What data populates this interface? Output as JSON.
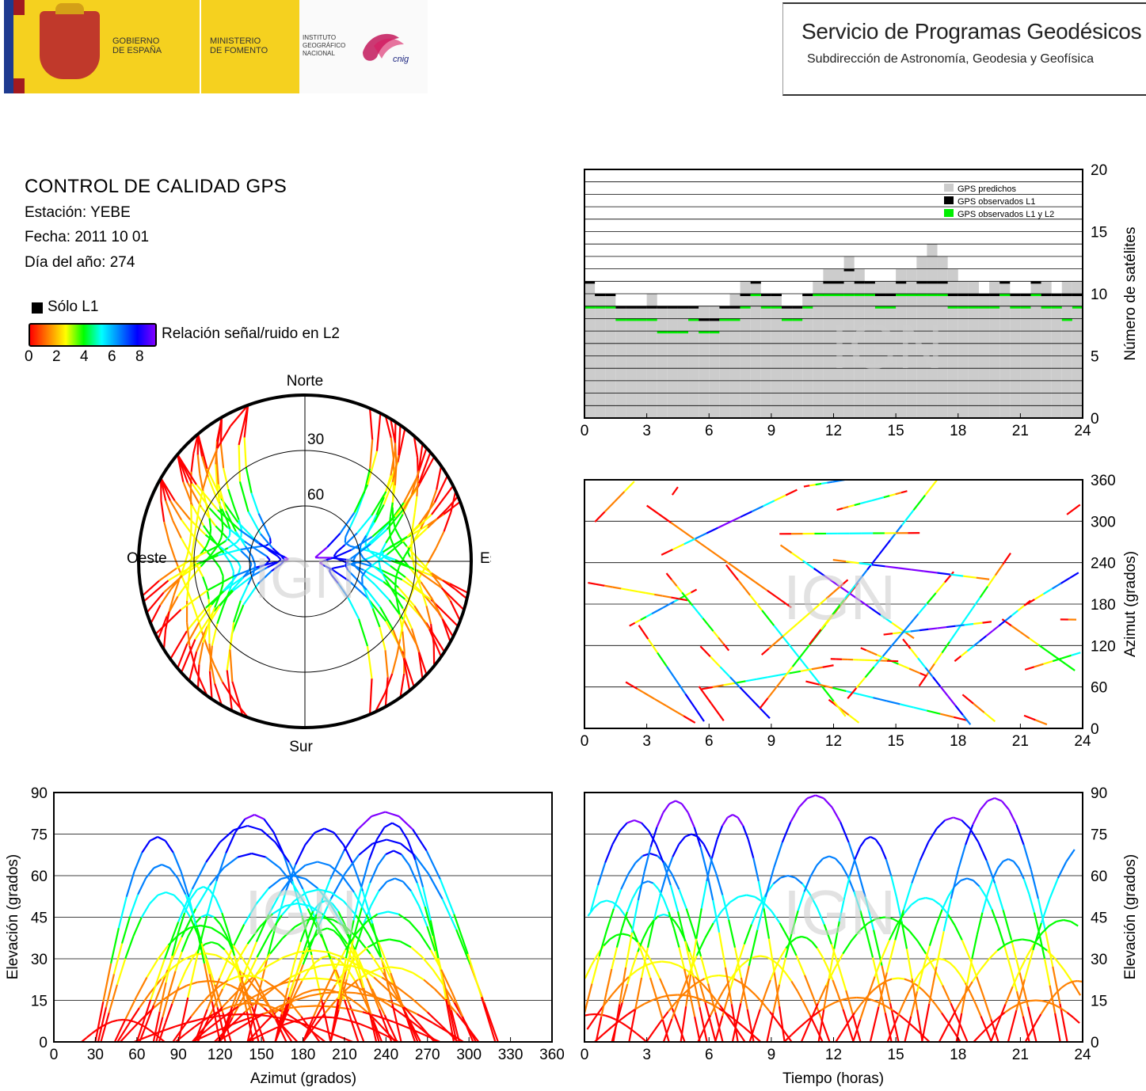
{
  "header": {
    "gov_line1": "GOBIERNO",
    "gov_line2": "DE ESPAÑA",
    "min_line1": "MINISTERIO",
    "min_line2": "DE FOMENTO",
    "ign_line1": "INSTITUTO",
    "ign_line2": "GEOGRÁFICO",
    "ign_line3": "NACIONAL",
    "cnig_logo": "cnig",
    "service_title": "Servicio de Programas Geodésicos",
    "service_subtitle": "Subdirección de Astronomía, Geodesia y Geofísica"
  },
  "info": {
    "title": "CONTROL DE CALIDAD GPS",
    "station": "Estación: YEBE",
    "date": "Fecha: 2011 10 01",
    "doy": "Día del año: 274",
    "l1_only": "Sólo L1",
    "snr_label": "Relación señal/ruido en L2",
    "snr_ticks": [
      "0",
      "2",
      "4",
      "6",
      "8"
    ]
  },
  "watermark": "IGN",
  "colors": {
    "predicted": "#cccccc",
    "observed_l1": "#000000",
    "observed_l1_l2": "#00ee00",
    "colormap": [
      "#ff0000",
      "#ff8000",
      "#ffff00",
      "#00ff00",
      "#00ffff",
      "#0080ff",
      "#0000ff",
      "#8000ff"
    ]
  },
  "chart_data": [
    {
      "type": "area",
      "id": "satellites",
      "ylabel": "Número de satélites",
      "xticks": [
        "0",
        "3",
        "6",
        "9",
        "12",
        "15",
        "18",
        "21",
        "24"
      ],
      "yticks": [
        "0",
        "5",
        "10",
        "15",
        "20"
      ],
      "xlim": [
        0,
        24
      ],
      "ylim": [
        0,
        20
      ],
      "legend": [
        "GPS predichos",
        "GPS observados L1",
        "GPS observados L1 y L2"
      ],
      "legend_position": "top-right",
      "grid": true,
      "series": [
        {
          "name": "GPS predichos",
          "x": [
            0,
            0.5,
            1,
            1.5,
            2,
            2.5,
            3,
            3.5,
            4,
            4.5,
            5,
            5.5,
            6,
            6.5,
            7,
            7.5,
            8,
            8.5,
            9,
            9.5,
            10,
            10.5,
            11,
            11.5,
            12,
            12.5,
            13,
            13.5,
            14,
            14.5,
            15,
            15.5,
            16,
            16.5,
            17,
            17.5,
            18,
            18.5,
            19,
            19.5,
            20,
            20.5,
            21,
            21.5,
            22,
            22.5,
            23,
            23.5,
            24
          ],
          "values": [
            11,
            10,
            10,
            9,
            9,
            9,
            10,
            9,
            9,
            9,
            9,
            9,
            9,
            9,
            10,
            11,
            11,
            10,
            10,
            9,
            9,
            10,
            11,
            12,
            12,
            13,
            12,
            11,
            11,
            11,
            12,
            12,
            13,
            14,
            13,
            12,
            11,
            11,
            10,
            11,
            11,
            10,
            10,
            11,
            11,
            10,
            11,
            11,
            11
          ]
        },
        {
          "name": "GPS observados L1",
          "x": [
            0,
            0.5,
            1,
            1.5,
            2,
            2.5,
            3,
            3.5,
            4,
            4.5,
            5,
            5.5,
            6,
            6.5,
            7,
            7.5,
            8,
            8.5,
            9,
            9.5,
            10,
            10.5,
            11,
            11.5,
            12,
            12.5,
            13,
            13.5,
            14,
            14.5,
            15,
            15.5,
            16,
            16.5,
            17,
            17.5,
            18,
            18.5,
            19,
            19.5,
            20,
            20.5,
            21,
            21.5,
            22,
            22.5,
            23,
            23.5,
            24
          ],
          "values": [
            11,
            10,
            10,
            9,
            9,
            9,
            9,
            9,
            9,
            9,
            9,
            8,
            8,
            9,
            9,
            10,
            11,
            10,
            10,
            9,
            9,
            10,
            10,
            11,
            11,
            12,
            11,
            11,
            10,
            10,
            11,
            10,
            11,
            11,
            11,
            10,
            10,
            10,
            10,
            10,
            11,
            10,
            10,
            11,
            10,
            10,
            10,
            10,
            11
          ]
        },
        {
          "name": "GPS observados L1 y L2",
          "x": [
            0,
            0.5,
            1,
            1.5,
            2,
            2.5,
            3,
            3.5,
            4,
            4.5,
            5,
            5.5,
            6,
            6.5,
            7,
            7.5,
            8,
            8.5,
            9,
            9.5,
            10,
            10.5,
            11,
            11.5,
            12,
            12.5,
            13,
            13.5,
            14,
            14.5,
            15,
            15.5,
            16,
            16.5,
            17,
            17.5,
            18,
            18.5,
            19,
            19.5,
            20,
            20.5,
            21,
            21.5,
            22,
            22.5,
            23,
            23.5,
            24
          ],
          "values": [
            9,
            9,
            9,
            8,
            8,
            8,
            8,
            7,
            7,
            7,
            8,
            7,
            7,
            8,
            8,
            9,
            10,
            9,
            9,
            8,
            8,
            9,
            10,
            10,
            10,
            10,
            10,
            10,
            9,
            9,
            10,
            10,
            10,
            10,
            10,
            9,
            9,
            9,
            9,
            9,
            10,
            9,
            9,
            10,
            9,
            9,
            8,
            9,
            10
          ]
        }
      ]
    },
    {
      "type": "scatter",
      "id": "azimuth_time",
      "xlabel": "",
      "ylabel": "Azimut (grados)",
      "xticks": [
        "0",
        "3",
        "6",
        "9",
        "12",
        "15",
        "18",
        "21",
        "24"
      ],
      "yticks": [
        "0",
        "60",
        "120",
        "180",
        "240",
        "300",
        "360"
      ],
      "xlim": [
        0,
        24
      ],
      "ylim": [
        0,
        360
      ],
      "grid": true
    },
    {
      "type": "scatter",
      "id": "skyplot",
      "labels": {
        "north": "Norte",
        "south": "Sur",
        "east": "Este",
        "west": "Oeste"
      },
      "rings": [
        "30",
        "60"
      ]
    },
    {
      "type": "scatter",
      "id": "elev_azimuth",
      "xlabel": "Azimut (grados)",
      "ylabel": "Elevación (grados)",
      "xticks": [
        "0",
        "30",
        "60",
        "90",
        "120",
        "150",
        "180",
        "210",
        "240",
        "270",
        "300",
        "330",
        "360"
      ],
      "yticks": [
        "0",
        "15",
        "30",
        "45",
        "60",
        "75",
        "90"
      ],
      "xlim": [
        0,
        360
      ],
      "ylim": [
        0,
        90
      ],
      "grid": true
    },
    {
      "type": "line",
      "id": "elev_time",
      "xlabel": "Tiempo (horas)",
      "ylabel": "Elevación (grados)",
      "xticks": [
        "0",
        "3",
        "6",
        "9",
        "12",
        "15",
        "18",
        "21",
        "24"
      ],
      "yticks": [
        "0",
        "15",
        "30",
        "45",
        "60",
        "75",
        "90"
      ],
      "xlim": [
        0,
        24
      ],
      "ylim": [
        0,
        90
      ],
      "grid": true
    }
  ]
}
